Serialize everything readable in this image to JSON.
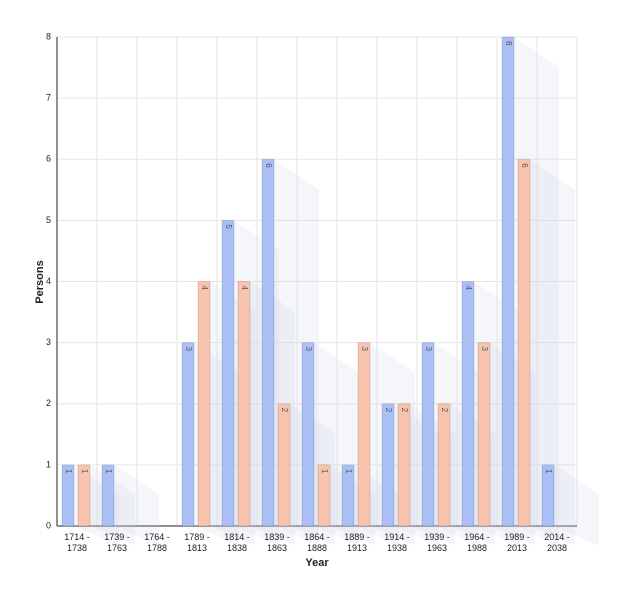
{
  "chart_data": {
    "type": "bar",
    "x_label": "Year",
    "y_label": "Persons",
    "categories": [
      "1714 - 1738",
      "1739 - 1763",
      "1764 - 1788",
      "1789 - 1813",
      "1814 - 1838",
      "1839 - 1863",
      "1864 - 1888",
      "1889 - 1913",
      "1914 - 1938",
      "1939 - 1963",
      "1964 - 1988",
      "1989 - 2013",
      "2014 - 2038"
    ],
    "series": [
      {
        "color": "#aabff6",
        "values": [
          1,
          1,
          null,
          3,
          5,
          6,
          3,
          1,
          2,
          3,
          4,
          8,
          1
        ]
      },
      {
        "color": "#f8c4ae",
        "values": [
          1,
          null,
          null,
          4,
          4,
          2,
          1,
          3,
          2,
          2,
          3,
          6,
          null
        ]
      }
    ],
    "ylim": [
      0,
      8
    ],
    "yticks": [
      0,
      1,
      2,
      3,
      4,
      5,
      6,
      7,
      8
    ],
    "grid": true
  }
}
